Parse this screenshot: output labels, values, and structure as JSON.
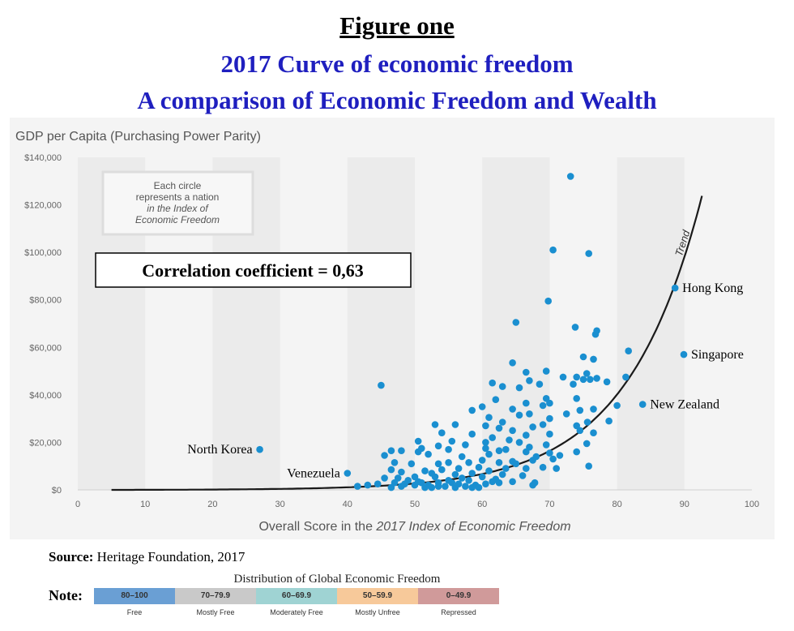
{
  "figure": {
    "title": "Figure one",
    "subtitle1": "2017 Curve of economic  freedom",
    "subtitle2": "A comparison  of Economic  Freedom  and Wealth"
  },
  "colors": {
    "dot": "#1a8fd0",
    "trend": "#1a1a1a",
    "panel_bg": "#f4f4f4",
    "band": "#ebebeb",
    "subtitle": "#1f1fbf"
  },
  "source": {
    "label": "Source:",
    "text": " Heritage Foundation, 2017"
  },
  "note": {
    "label": "Note:",
    "title": "Distribution of Global Economic Freedom",
    "categories": [
      {
        "range": "80–100",
        "name": "Free",
        "color": "#6a9fd4"
      },
      {
        "range": "70–79.9",
        "name": "Mostly Free",
        "color": "#c9c9c9"
      },
      {
        "range": "60–69.9",
        "name": "Moderately Free",
        "color": "#9fd3d3"
      },
      {
        "range": "50–59.9",
        "name": "Mostly Unfree",
        "color": "#f7c99a"
      },
      {
        "range": "0–49.9",
        "name": "Repressed",
        "color": "#d09a9a"
      }
    ]
  },
  "chart_data": {
    "type": "scatter",
    "ylabel": "GDP per Capita (Purchasing Power Parity)",
    "xlabel_prefix": "Overall Score in the ",
    "xlabel_italic": "2017 Index of Economic Freedom",
    "xlim": [
      0,
      100
    ],
    "ylim": [
      0,
      140000
    ],
    "x_ticks": [
      0,
      10,
      20,
      30,
      40,
      50,
      60,
      70,
      80,
      90,
      100
    ],
    "x_tick_labels": [
      "0",
      "10",
      "20",
      "30",
      "40",
      "50",
      "60",
      "70",
      "80",
      "90",
      "100"
    ],
    "y_ticks": [
      0,
      20000,
      40000,
      60000,
      80000,
      100000,
      120000,
      140000
    ],
    "y_tick_labels": [
      "$0",
      "$20,000",
      "$40,000",
      "$60,000",
      "$80,000",
      "$100,000",
      "$120,000",
      "$140,000"
    ],
    "info_box": [
      "Each circle",
      "represents a nation",
      "in the Index of",
      "Economic Freedom"
    ],
    "correlation_label": "Correlation  coefficient = 0,63",
    "trend_label": "Trend",
    "labeled_points": [
      {
        "name": "North Korea",
        "x": 27,
        "y": 17000
      },
      {
        "name": "Venezuela",
        "x": 40,
        "y": 7000
      },
      {
        "name": "Hong Kong",
        "x": 88.6,
        "y": 85000
      },
      {
        "name": "Singapore",
        "x": 89.9,
        "y": 57000
      },
      {
        "name": "New Zealand",
        "x": 83.8,
        "y": 36000
      }
    ],
    "points": [
      [
        73.1,
        132000
      ],
      [
        70.5,
        101000
      ],
      [
        75.8,
        99500
      ],
      [
        69.8,
        79500
      ],
      [
        65,
        70500
      ],
      [
        73.8,
        68500
      ],
      [
        77,
        67000
      ],
      [
        76.8,
        65500
      ],
      [
        81.7,
        58500
      ],
      [
        75,
        56000
      ],
      [
        76.5,
        55000
      ],
      [
        64.5,
        53500
      ],
      [
        69.5,
        50000
      ],
      [
        66.5,
        49500
      ],
      [
        75.5,
        49000
      ],
      [
        72,
        47500
      ],
      [
        74,
        47500
      ],
      [
        75,
        46500
      ],
      [
        76,
        46500
      ],
      [
        78.5,
        45500
      ],
      [
        81.3,
        47500
      ],
      [
        77,
        47000
      ],
      [
        73.5,
        44500
      ],
      [
        67,
        46000
      ],
      [
        61.5,
        45000
      ],
      [
        63,
        43500
      ],
      [
        65.5,
        43000
      ],
      [
        68.5,
        44500
      ],
      [
        45,
        44000
      ],
      [
        69.5,
        38500
      ],
      [
        74,
        38500
      ],
      [
        62,
        38000
      ],
      [
        66.5,
        36500
      ],
      [
        69,
        35500
      ],
      [
        70,
        36500
      ],
      [
        60,
        35000
      ],
      [
        64.5,
        34000
      ],
      [
        58.5,
        33500
      ],
      [
        72.5,
        32000
      ],
      [
        74.5,
        33500
      ],
      [
        76.5,
        34000
      ],
      [
        80,
        35500
      ],
      [
        65.5,
        31500
      ],
      [
        67,
        32000
      ],
      [
        70,
        30000
      ],
      [
        61,
        30500
      ],
      [
        63,
        28500
      ],
      [
        56,
        27500
      ],
      [
        53,
        27500
      ],
      [
        78.8,
        29000
      ],
      [
        75.6,
        28500
      ],
      [
        69,
        27500
      ],
      [
        67.5,
        26500
      ],
      [
        60.5,
        27000
      ],
      [
        62.5,
        26000
      ],
      [
        64.5,
        25000
      ],
      [
        54,
        24000
      ],
      [
        58.5,
        23500
      ],
      [
        74,
        27000
      ],
      [
        74.5,
        25000
      ],
      [
        76.5,
        24000
      ],
      [
        66.5,
        23000
      ],
      [
        70,
        23500
      ],
      [
        61.5,
        22000
      ],
      [
        64,
        21000
      ],
      [
        55.5,
        20500
      ],
      [
        50.5,
        20500
      ],
      [
        75.5,
        19500
      ],
      [
        69.5,
        19000
      ],
      [
        65.5,
        20000
      ],
      [
        60.5,
        20000
      ],
      [
        57.5,
        19000
      ],
      [
        53.5,
        18500
      ],
      [
        67,
        18000
      ],
      [
        51,
        17500
      ],
      [
        62.5,
        16500
      ],
      [
        63.5,
        17000
      ],
      [
        46.5,
        16500
      ],
      [
        48,
        16500
      ],
      [
        55,
        17000
      ],
      [
        60.5,
        17500
      ],
      [
        66.5,
        16000
      ],
      [
        70,
        15500
      ],
      [
        74,
        16000
      ],
      [
        71.5,
        14500
      ],
      [
        68,
        14000
      ],
      [
        61,
        15000
      ],
      [
        57,
        14000
      ],
      [
        52,
        15000
      ],
      [
        50.5,
        16000
      ],
      [
        45.5,
        14500
      ],
      [
        64.5,
        12000
      ],
      [
        67.5,
        12500
      ],
      [
        70.5,
        13000
      ],
      [
        60,
        12500
      ],
      [
        62.5,
        11500
      ],
      [
        65,
        11000
      ],
      [
        58,
        11500
      ],
      [
        55,
        11500
      ],
      [
        53.5,
        11000
      ],
      [
        49.5,
        11000
      ],
      [
        47,
        11500
      ],
      [
        69,
        9500
      ],
      [
        71,
        9000
      ],
      [
        66.5,
        9000
      ],
      [
        63.5,
        9000
      ],
      [
        59.5,
        9500
      ],
      [
        56.5,
        9000
      ],
      [
        75.8,
        10000
      ],
      [
        46.5,
        8500
      ],
      [
        51.5,
        8000
      ],
      [
        54,
        8500
      ],
      [
        61,
        8000
      ],
      [
        48,
        7500
      ],
      [
        52.5,
        7000
      ],
      [
        56,
        6500
      ],
      [
        58.5,
        7000
      ],
      [
        63,
        6500
      ],
      [
        66,
        6000
      ],
      [
        60,
        5500
      ],
      [
        50,
        5500
      ],
      [
        53,
        5500
      ],
      [
        57,
        5000
      ],
      [
        45.5,
        5000
      ],
      [
        47.5,
        5000
      ],
      [
        55,
        4000
      ],
      [
        58,
        4000
      ],
      [
        62,
        4500
      ],
      [
        64.5,
        3500
      ],
      [
        49,
        4000
      ],
      [
        51,
        3000
      ],
      [
        52,
        2000
      ],
      [
        53.5,
        3000
      ],
      [
        55.5,
        3000
      ],
      [
        56.5,
        2500
      ],
      [
        57.5,
        1500
      ],
      [
        59,
        2000
      ],
      [
        60.5,
        2500
      ],
      [
        61.5,
        3500
      ],
      [
        54.5,
        1500
      ],
      [
        52.5,
        1000
      ],
      [
        50,
        2000
      ],
      [
        48.5,
        2500
      ],
      [
        48,
        1500
      ],
      [
        46.5,
        1000
      ],
      [
        43,
        2000
      ],
      [
        41.5,
        1500
      ],
      [
        56,
        1000
      ],
      [
        58.5,
        1000
      ],
      [
        67.5,
        2000
      ],
      [
        67.8,
        3000
      ],
      [
        51.5,
        1000
      ],
      [
        53.5,
        1500
      ],
      [
        59.5,
        1000
      ],
      [
        62.5,
        3000
      ],
      [
        50.5,
        3500
      ],
      [
        47,
        3000
      ],
      [
        44.5,
        2500
      ]
    ]
  }
}
